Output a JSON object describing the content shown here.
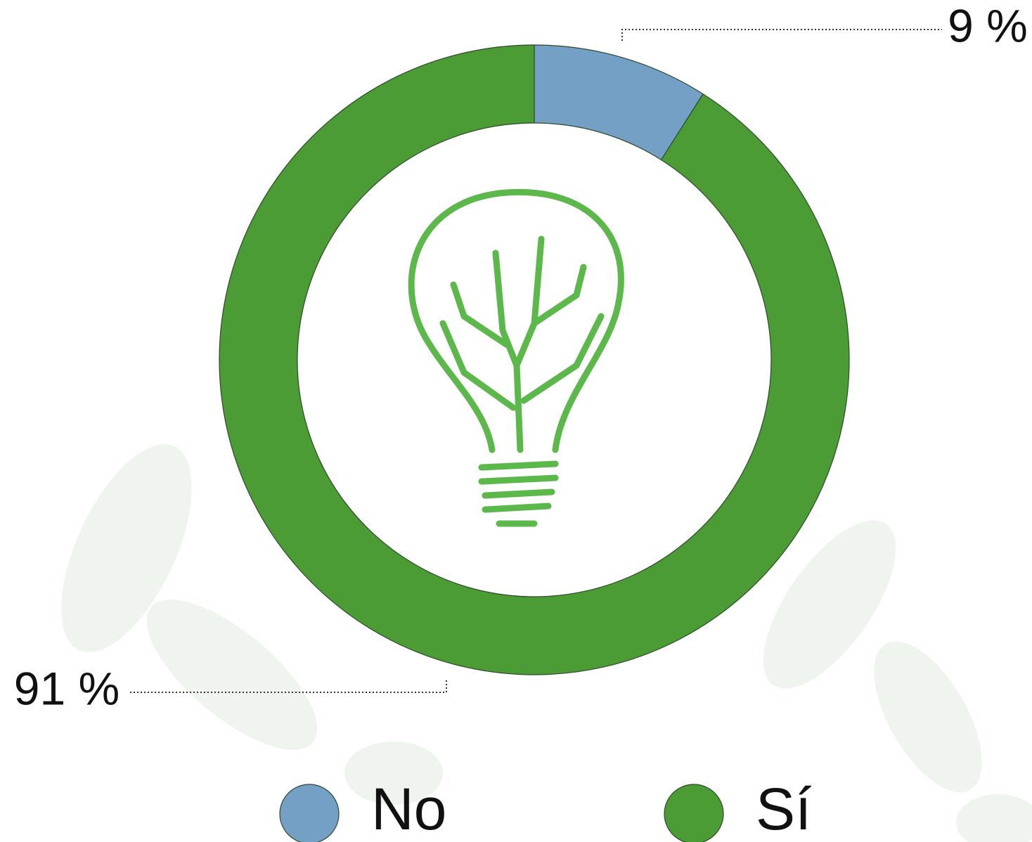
{
  "chart_data": {
    "type": "pie",
    "donut": true,
    "categories": [
      "No",
      "Sí"
    ],
    "values": [
      9,
      91
    ],
    "value_labels": [
      "9 %",
      "91 %"
    ],
    "colors": [
      "#74a0c6",
      "#4c9c36"
    ]
  }
}
